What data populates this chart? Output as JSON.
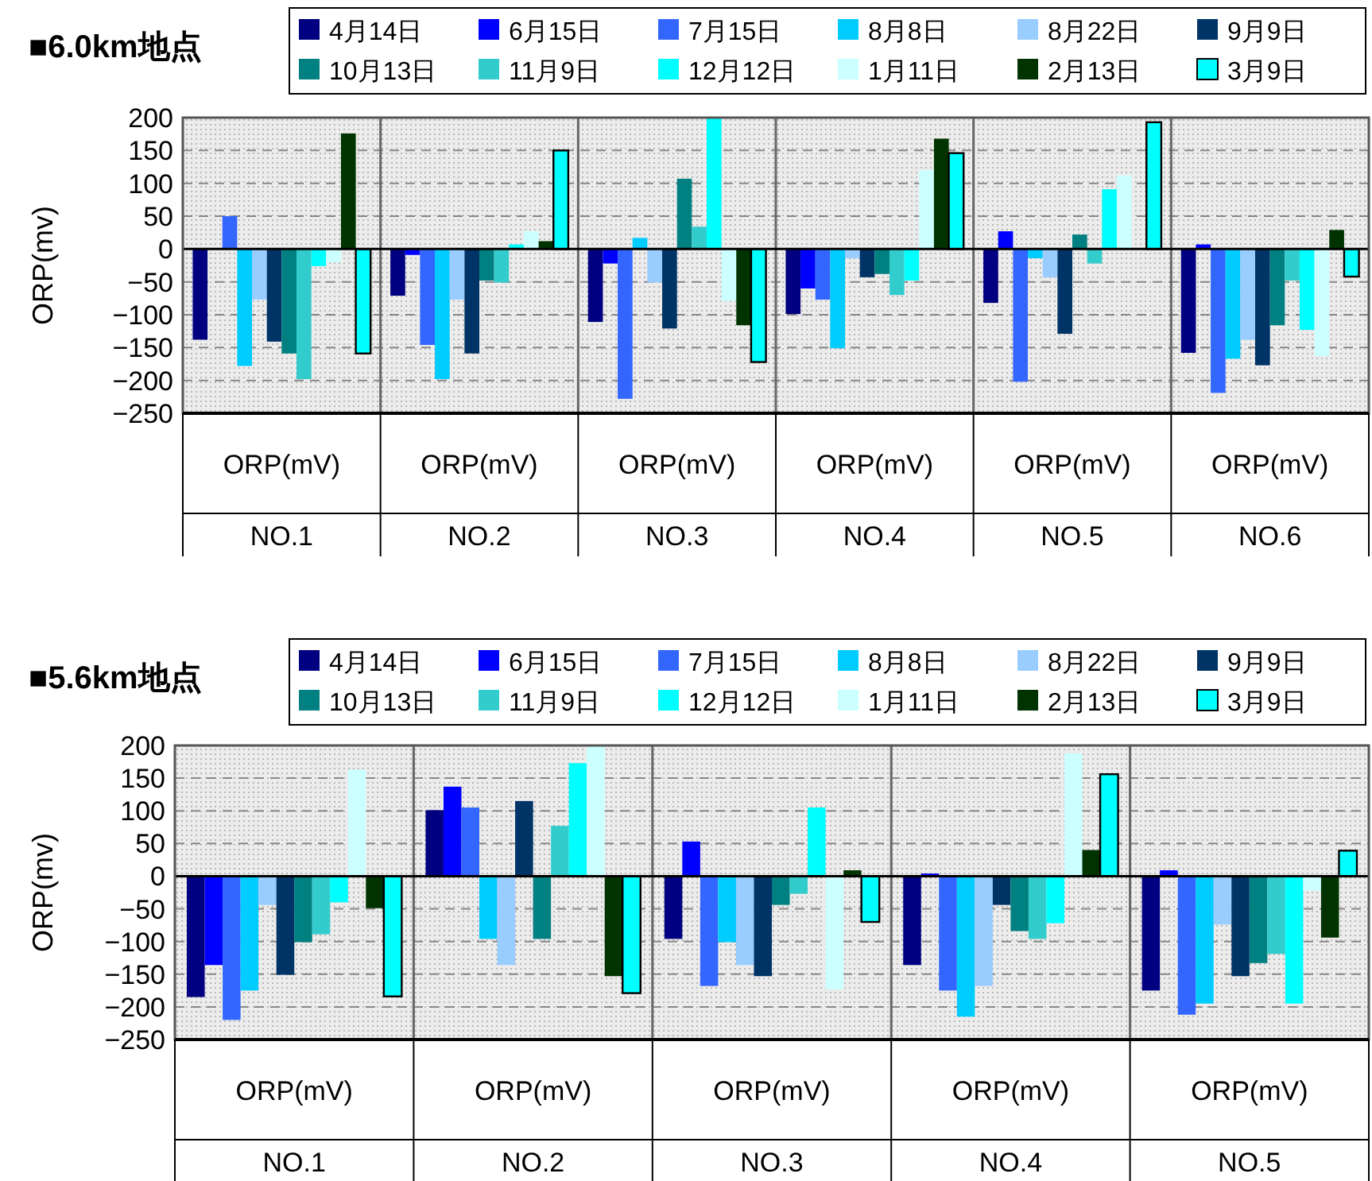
{
  "chart_data": [
    {
      "type": "bar",
      "title": "■6.0km地点",
      "ylabel": "ORP(mv)",
      "categories": [
        "ORP(mV)\nNO.1",
        "ORP(mV)\nNO.2",
        "ORP(mV)\nNO.3",
        "ORP(mV)\nNO.4",
        "ORP(mV)\nNO.5",
        "ORP(mV)\nNO.6"
      ],
      "ylim": [
        -250,
        200
      ],
      "yticks": [
        -250,
        -200,
        -150,
        -100,
        -50,
        0,
        50,
        100,
        150,
        200
      ],
      "grid": "y",
      "legend": "top",
      "series": [
        {
          "name": "4月14日",
          "color": "#000080",
          "values": [
            -138,
            -71,
            -111,
            -99,
            -82,
            -158
          ]
        },
        {
          "name": "6月15日",
          "color": "#0000ff",
          "values": [
            null,
            -9,
            -22,
            -60,
            27,
            7
          ]
        },
        {
          "name": "7月15日",
          "color": "#3366ff",
          "values": [
            50,
            -146,
            -228,
            -77,
            -202,
            -219
          ]
        },
        {
          "name": "8月8日",
          "color": "#00ccff",
          "values": [
            -178,
            -198,
            17,
            -151,
            -14,
            -167
          ]
        },
        {
          "name": "8月22日",
          "color": "#99ccff",
          "values": [
            -77,
            -77,
            -51,
            -14,
            -43,
            -138
          ]
        },
        {
          "name": "9月9日",
          "color": "#003366",
          "values": [
            -141,
            -159,
            -121,
            -43,
            -129,
            -177
          ]
        },
        {
          "name": "10月13日",
          "color": "#008080",
          "values": [
            -159,
            -48,
            107,
            -38,
            22,
            -116
          ]
        },
        {
          "name": "11月9日",
          "color": "#33cccc",
          "values": [
            -198,
            -51,
            34,
            -70,
            -22,
            -48
          ]
        },
        {
          "name": "12月12日",
          "color": "#00ffff",
          "values": [
            -26,
            7,
            200,
            -48,
            91,
            -123
          ]
        },
        {
          "name": "1月11日",
          "color": "#ccffff",
          "values": [
            -20,
            27,
            -79,
            120,
            112,
            -163
          ]
        },
        {
          "name": "2月13日",
          "color": "#003300",
          "values": [
            176,
            12,
            -116,
            168,
            null,
            29
          ]
        },
        {
          "name": "3月9日",
          "color": "#00ffff",
          "values": [
            -159,
            150,
            -172,
            146,
            193,
            -42
          ]
        }
      ]
    },
    {
      "type": "bar",
      "title": "■5.6km地点",
      "ylabel": "ORP(mv)",
      "categories": [
        "ORP(mV)\nNO.1",
        "ORP(mV)\nNO.2",
        "ORP(mV)\nNO.3",
        "ORP(mV)\nNO.4",
        "ORP(mV)\nNO.5"
      ],
      "ylim": [
        -250,
        200
      ],
      "yticks": [
        -250,
        -200,
        -150,
        -100,
        -50,
        0,
        50,
        100,
        150,
        200
      ],
      "grid": "y",
      "legend": "top",
      "series": [
        {
          "name": "4月14日",
          "color": "#000080",
          "values": [
            -185,
            101,
            -96,
            -136,
            -175
          ]
        },
        {
          "name": "6月15日",
          "color": "#0000ff",
          "values": [
            -136,
            137,
            53,
            4,
            9
          ]
        },
        {
          "name": "7月15日",
          "color": "#3366ff",
          "values": [
            -220,
            105,
            -168,
            -175,
            -212
          ]
        },
        {
          "name": "8月8日",
          "color": "#00ccff",
          "values": [
            -175,
            -96,
            -101,
            -215,
            -195
          ]
        },
        {
          "name": "8月22日",
          "color": "#99ccff",
          "values": [
            -44,
            -136,
            -136,
            -168,
            -74
          ]
        },
        {
          "name": "9月9日",
          "color": "#003366",
          "values": [
            -151,
            115,
            -153,
            -44,
            -153
          ]
        },
        {
          "name": "10月13日",
          "color": "#008080",
          "values": [
            -101,
            -96,
            -44,
            -84,
            -133
          ]
        },
        {
          "name": "11月9日",
          "color": "#33cccc",
          "values": [
            -89,
            77,
            -27,
            -96,
            -119
          ]
        },
        {
          "name": "12月12日",
          "color": "#00ffff",
          "values": [
            -40,
            173,
            105,
            -72,
            -195
          ]
        },
        {
          "name": "1月11日",
          "color": "#ccffff",
          "values": [
            163,
            200,
            -173,
            188,
            -22
          ]
        },
        {
          "name": "2月13日",
          "color": "#003300",
          "values": [
            -49,
            -153,
            9,
            40,
            -94
          ]
        },
        {
          "name": "3月9日",
          "color": "#00ffff",
          "values": [
            -184,
            -179,
            -70,
            156,
            39
          ]
        }
      ]
    }
  ]
}
